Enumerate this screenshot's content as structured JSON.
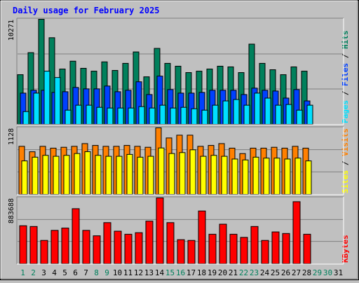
{
  "title": "Daily usage for February 2025",
  "colors": {
    "background": "#c0c0c0",
    "hits": "#00805c",
    "files": "#0040ff",
    "pages": "#00e0ff",
    "visits": "#ff8000",
    "sites": "#ffff00",
    "kbytes": "#ff0000",
    "title": "#0000ff",
    "day_weekday": "#000000",
    "day_weekend": "#00805c"
  },
  "chart_data": [
    {
      "type": "bar",
      "panel": "hits-files-pages",
      "max_label": "10271",
      "ylim": [
        0,
        10271
      ],
      "legend_parts": [
        "Pages",
        "Files",
        "Hits"
      ],
      "legend_separator": " / ",
      "categories": [
        "1",
        "2",
        "3",
        "4",
        "5",
        "6",
        "7",
        "8",
        "9",
        "10",
        "11",
        "12",
        "13",
        "14",
        "15",
        "16",
        "17",
        "18",
        "19",
        "20",
        "21",
        "22",
        "23",
        "24",
        "25",
        "26",
        "27",
        "28"
      ],
      "series": [
        {
          "name": "Hits",
          "values": [
            4855,
            7009,
            10271,
            8468,
            5408,
            6176,
            5478,
            5200,
            6107,
            5269,
            5962,
            7079,
            4646,
            7426,
            5962,
            5685,
            5061,
            5200,
            5408,
            5685,
            5616,
            5061,
            7842,
            5962,
            5339,
            4855,
            5616,
            5200
          ]
        },
        {
          "name": "Files",
          "values": [
            3053,
            3330,
            3330,
            3122,
            3191,
            3607,
            3469,
            3469,
            3746,
            3191,
            3330,
            4162,
            2914,
            4716,
            3399,
            3053,
            3053,
            3122,
            3330,
            3330,
            3330,
            2914,
            3538,
            3330,
            3260,
            2568,
            3399,
            2290
          ]
        },
        {
          "name": "Pages",
          "values": [
            1249,
            3053,
            5200,
            4577,
            1388,
            1873,
            1873,
            1665,
            1596,
            1596,
            1596,
            1735,
            1596,
            1873,
            1596,
            1665,
            1527,
            1388,
            1873,
            2289,
            2428,
            1873,
            3053,
            2567,
            1873,
            1942,
            1388,
            1873
          ]
        }
      ]
    },
    {
      "type": "bar",
      "panel": "visits-sites",
      "max_label": "1128",
      "ylim": [
        0,
        1128
      ],
      "legend_parts": [
        "Sites",
        "Visits"
      ],
      "legend_separator": " / ",
      "categories": [
        "1",
        "2",
        "3",
        "4",
        "5",
        "6",
        "7",
        "8",
        "9",
        "10",
        "11",
        "12",
        "13",
        "14",
        "15",
        "16",
        "17",
        "18",
        "19",
        "20",
        "21",
        "22",
        "23",
        "24",
        "25",
        "26",
        "27",
        "28"
      ],
      "series": [
        {
          "name": "Visits",
          "values": [
            815,
            723,
            815,
            784,
            799,
            815,
            861,
            830,
            815,
            815,
            830,
            815,
            799,
            1128,
            957,
            1004,
            1004,
            815,
            830,
            861,
            784,
            692,
            784,
            784,
            799,
            784,
            815,
            784
          ]
        },
        {
          "name": "Sites",
          "values": [
            568,
            631,
            662,
            646,
            662,
            693,
            724,
            662,
            646,
            646,
            678,
            631,
            646,
            787,
            693,
            709,
            756,
            646,
            662,
            646,
            600,
            584,
            631,
            615,
            615,
            600,
            615,
            568
          ]
        }
      ]
    },
    {
      "type": "bar",
      "panel": "kbytes",
      "max_label": "883688",
      "ylim": [
        0,
        883688
      ],
      "legend_parts": [
        "KBytes"
      ],
      "legend_separator": "",
      "categories": [
        "1",
        "2",
        "3",
        "4",
        "5",
        "6",
        "7",
        "8",
        "9",
        "10",
        "11",
        "12",
        "13",
        "14",
        "15",
        "16",
        "17",
        "18",
        "19",
        "20",
        "21",
        "22",
        "23",
        "24",
        "25",
        "26",
        "27",
        "28"
      ],
      "series": [
        {
          "name": "KBytes",
          "values": [
            510000,
            500000,
            313000,
            448000,
            479000,
            739000,
            448000,
            375000,
            552000,
            437000,
            396000,
            417000,
            572000,
            883688,
            552000,
            323000,
            313000,
            708000,
            396000,
            531000,
            396000,
            354000,
            500000,
            313000,
            427000,
            406000,
            833000,
            396000
          ]
        }
      ]
    }
  ],
  "x_axis": {
    "days": [
      "1",
      "2",
      "3",
      "4",
      "5",
      "6",
      "7",
      "8",
      "9",
      "10",
      "11",
      "12",
      "13",
      "14",
      "15",
      "16",
      "17",
      "18",
      "19",
      "20",
      "21",
      "22",
      "23",
      "24",
      "25",
      "26",
      "27",
      "28",
      "29",
      "30",
      "31"
    ],
    "weekend_days": [
      "1",
      "2",
      "8",
      "9",
      "15",
      "16",
      "22",
      "23",
      "29",
      "30"
    ]
  }
}
